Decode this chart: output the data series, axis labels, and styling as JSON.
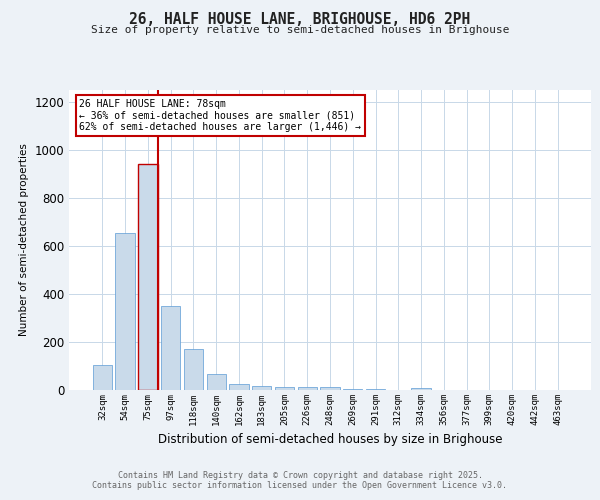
{
  "title": "26, HALF HOUSE LANE, BRIGHOUSE, HD6 2PH",
  "subtitle": "Size of property relative to semi-detached houses in Brighouse",
  "xlabel": "Distribution of semi-detached houses by size in Brighouse",
  "ylabel": "Number of semi-detached properties",
  "categories": [
    "32sqm",
    "54sqm",
    "75sqm",
    "97sqm",
    "118sqm",
    "140sqm",
    "162sqm",
    "183sqm",
    "205sqm",
    "226sqm",
    "248sqm",
    "269sqm",
    "291sqm",
    "312sqm",
    "334sqm",
    "356sqm",
    "377sqm",
    "399sqm",
    "420sqm",
    "442sqm",
    "463sqm"
  ],
  "values": [
    105,
    655,
    940,
    350,
    170,
    68,
    27,
    18,
    12,
    13,
    13,
    5,
    3,
    2,
    8,
    0,
    0,
    0,
    0,
    0,
    0
  ],
  "bar_color": "#c9daea",
  "bar_edge_color": "#5b9bd5",
  "highlight_bar_index": 2,
  "highlight_edge_color": "#c00000",
  "vline_color": "#c00000",
  "annotation_text": "26 HALF HOUSE LANE: 78sqm\n← 36% of semi-detached houses are smaller (851)\n62% of semi-detached houses are larger (1,446) →",
  "annotation_box_color": "#ffffff",
  "annotation_box_edge": "#c00000",
  "ylim": [
    0,
    1250
  ],
  "yticks": [
    0,
    200,
    400,
    600,
    800,
    1000,
    1200
  ],
  "footer_text": "Contains HM Land Registry data © Crown copyright and database right 2025.\nContains public sector information licensed under the Open Government Licence v3.0.",
  "background_color": "#edf2f7",
  "plot_bg_color": "#ffffff",
  "grid_color": "#c8d8e8"
}
